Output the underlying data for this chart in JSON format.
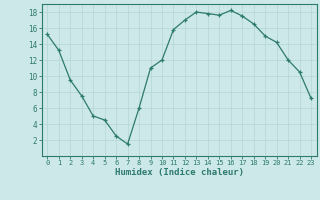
{
  "x": [
    0,
    1,
    2,
    3,
    4,
    5,
    6,
    7,
    8,
    9,
    10,
    11,
    12,
    13,
    14,
    15,
    16,
    17,
    18,
    19,
    20,
    21,
    22,
    23
  ],
  "y": [
    15.2,
    13.2,
    9.5,
    7.5,
    5.0,
    4.5,
    2.5,
    1.5,
    6.0,
    11.0,
    12.0,
    15.8,
    17.0,
    18.0,
    17.8,
    17.6,
    18.2,
    17.5,
    16.5,
    15.0,
    14.2,
    12.0,
    10.5,
    7.2
  ],
  "line_color": "#2d7a6e",
  "marker": "+",
  "marker_size": 3,
  "bg_color": "#cde8e8",
  "grid_color": "#b8d8d8",
  "xlabel": "Humidex (Indice chaleur)",
  "xlim": [
    -0.5,
    23.5
  ],
  "ylim": [
    0,
    19
  ],
  "yticks": [
    2,
    4,
    6,
    8,
    10,
    12,
    14,
    16,
    18
  ],
  "xticks": [
    0,
    1,
    2,
    3,
    4,
    5,
    6,
    7,
    8,
    9,
    10,
    11,
    12,
    13,
    14,
    15,
    16,
    17,
    18,
    19,
    20,
    21,
    22,
    23
  ],
  "tick_color": "#2d7a6e",
  "label_color": "#2d7a6e",
  "spine_color": "#2d7a6e",
  "xfontsize": 5.0,
  "yfontsize": 5.5,
  "xlabel_fontsize": 6.5
}
